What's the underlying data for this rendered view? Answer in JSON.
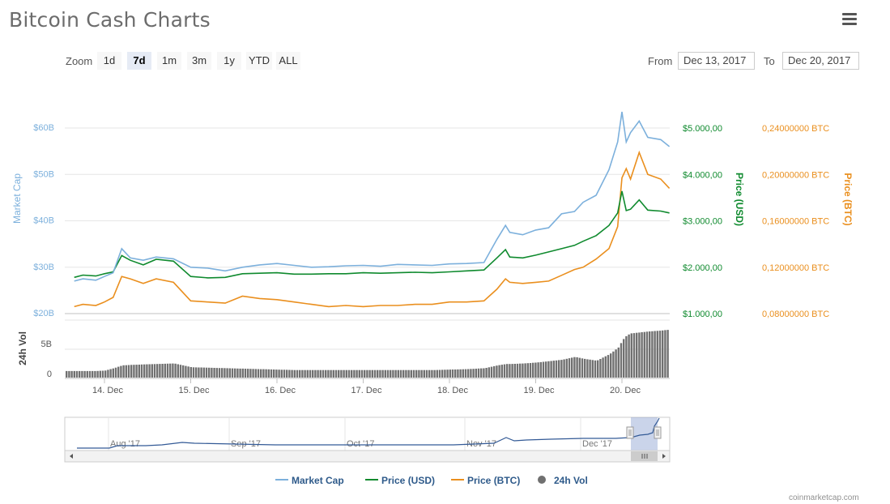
{
  "page": {
    "title": "Bitcoin Cash Charts",
    "credit": "coinmarketcap.com"
  },
  "zoom": {
    "label": "Zoom",
    "buttons": [
      "1d",
      "7d",
      "1m",
      "3m",
      "1y",
      "YTD",
      "ALL"
    ],
    "active": "7d"
  },
  "range": {
    "from_label": "From",
    "from_value": "Dec 13, 2017",
    "to_label": "To",
    "to_value": "Dec 20, 2017"
  },
  "colors": {
    "market_cap": "#7cb0dc",
    "price_usd": "#0f8a2e",
    "price_btc": "#ea8f1e",
    "volume": "#707070",
    "nav_line": "#335a96"
  },
  "chart_data": {
    "type": "line",
    "x_categories": [
      "14. Dec",
      "15. Dec",
      "16. Dec",
      "17. Dec",
      "18. Dec",
      "19. Dec",
      "20. Dec"
    ],
    "axes": {
      "market_cap": {
        "label": "Market Cap",
        "ticks": [
          "$20B",
          "$30B",
          "$40B",
          "$50B",
          "$60B"
        ],
        "range": [
          20,
          60
        ]
      },
      "price_usd": {
        "label": "Price (USD)",
        "ticks": [
          "$1.000,00",
          "$2.000,00",
          "$3.000,00",
          "$4.000,00",
          "$5.000,00"
        ],
        "range": [
          1000,
          5000
        ]
      },
      "price_btc": {
        "label": "Price (BTC)",
        "ticks": [
          "0,08000000 BTC",
          "0,12000000 BTC",
          "0,16000000 BTC",
          "0,20000000 BTC",
          "0,24000000 BTC"
        ],
        "range": [
          0.08,
          0.24
        ]
      },
      "volume": {
        "label": "24h Vol",
        "ticks": [
          "0",
          "5B"
        ]
      }
    },
    "x_days": [
      -0.35,
      -0.25,
      -0.1,
      0.0,
      0.1,
      0.2,
      0.3,
      0.45,
      0.6,
      0.8,
      1.0,
      1.2,
      1.4,
      1.6,
      1.8,
      2.0,
      2.2,
      2.4,
      2.6,
      2.8,
      3.0,
      3.2,
      3.4,
      3.6,
      3.8,
      4.0,
      4.2,
      4.4,
      4.55,
      4.65,
      4.7,
      4.85,
      5.0,
      5.15,
      5.3,
      5.45,
      5.55,
      5.7,
      5.85,
      5.95,
      6.0,
      6.05,
      6.1,
      6.2,
      6.3,
      6.45,
      6.55
    ],
    "series": [
      {
        "name": "Market Cap",
        "axis": "market_cap",
        "values": [
          27.0,
          27.5,
          27.2,
          28.0,
          28.8,
          34.0,
          32.0,
          31.5,
          32.2,
          31.8,
          30.0,
          29.8,
          29.2,
          30.0,
          30.5,
          30.8,
          30.4,
          30.0,
          30.1,
          30.3,
          30.4,
          30.2,
          30.6,
          30.5,
          30.4,
          30.7,
          30.8,
          31.0,
          36.0,
          39.0,
          37.5,
          37.0,
          38.0,
          38.5,
          41.5,
          42.0,
          44.0,
          45.5,
          51.0,
          57.0,
          63.5,
          57.0,
          59.0,
          61.5,
          58.0,
          57.5,
          56.0
        ]
      },
      {
        "name": "Price (USD)",
        "axis": "price_usd",
        "values": [
          1780,
          1830,
          1810,
          1860,
          1900,
          2250,
          2150,
          2050,
          2170,
          2130,
          1800,
          1770,
          1780,
          1860,
          1870,
          1880,
          1850,
          1850,
          1860,
          1860,
          1880,
          1870,
          1880,
          1890,
          1880,
          1900,
          1920,
          1940,
          2200,
          2380,
          2220,
          2200,
          2260,
          2330,
          2400,
          2470,
          2560,
          2680,
          2900,
          3170,
          3640,
          3220,
          3250,
          3450,
          3230,
          3210,
          3170
        ]
      },
      {
        "name": "Price (BTC)",
        "axis": "price_btc",
        "values": [
          0.086,
          0.088,
          0.087,
          0.09,
          0.094,
          0.112,
          0.11,
          0.106,
          0.11,
          0.107,
          0.091,
          0.09,
          0.089,
          0.095,
          0.093,
          0.092,
          0.09,
          0.088,
          0.086,
          0.087,
          0.086,
          0.087,
          0.087,
          0.088,
          0.088,
          0.09,
          0.09,
          0.091,
          0.101,
          0.11,
          0.107,
          0.106,
          0.107,
          0.108,
          0.113,
          0.118,
          0.12,
          0.127,
          0.136,
          0.155,
          0.197,
          0.205,
          0.196,
          0.219,
          0.2,
          0.196,
          0.188
        ]
      },
      {
        "name": "24h Vol",
        "axis": "volume",
        "type": "column",
        "values": [
          0.7,
          0.7,
          0.7,
          0.75,
          1.0,
          1.3,
          1.35,
          1.4,
          1.45,
          1.5,
          1.1,
          1.05,
          1.0,
          0.95,
          0.9,
          0.85,
          0.8,
          0.8,
          0.8,
          0.8,
          0.8,
          0.8,
          0.8,
          0.8,
          0.8,
          0.85,
          0.9,
          1.0,
          1.3,
          1.45,
          1.45,
          1.5,
          1.6,
          1.75,
          1.9,
          2.2,
          2.0,
          1.8,
          2.5,
          3.2,
          4.0,
          4.5,
          4.7,
          4.8,
          4.9,
          5.0,
          5.1
        ]
      }
    ],
    "navigator": {
      "labels": [
        "Aug '17",
        "Sep '17",
        "Oct '17",
        "Nov '17",
        "Dec '17"
      ]
    },
    "legend": [
      "Market Cap",
      "Price (USD)",
      "Price (BTC)",
      "24h Vol"
    ],
    "legend_position": "bottom-center",
    "grid": true
  }
}
